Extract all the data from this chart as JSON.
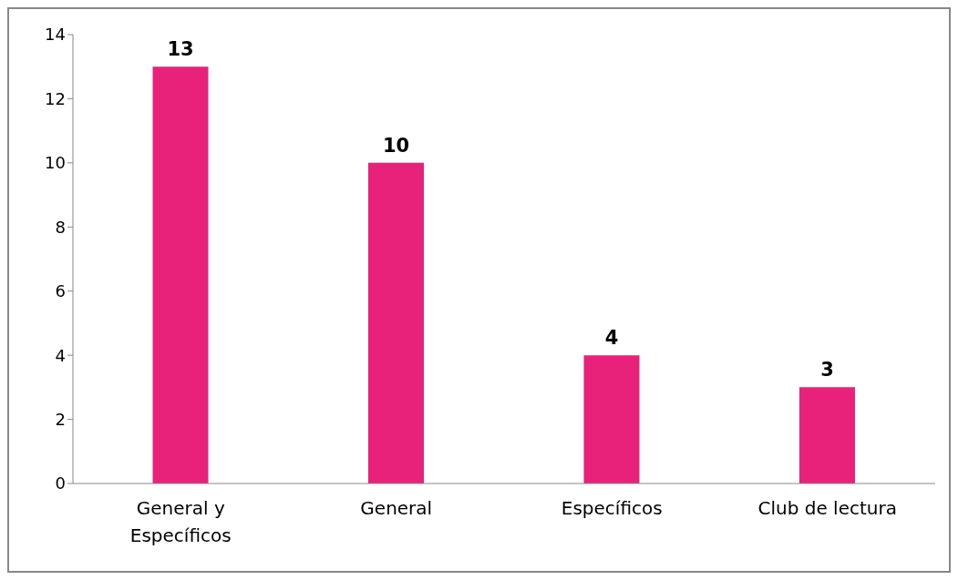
{
  "chart_data": {
    "type": "bar",
    "categories": [
      "General y Específicos",
      "General",
      "Específicos",
      "Club de lectura"
    ],
    "values": [
      13,
      10,
      4,
      3
    ],
    "color": "#e8217a",
    "ylim": [
      0,
      14
    ],
    "yticks": [
      0,
      2,
      4,
      6,
      8,
      10,
      12,
      14
    ],
    "grid": false,
    "data_labels": true
  }
}
